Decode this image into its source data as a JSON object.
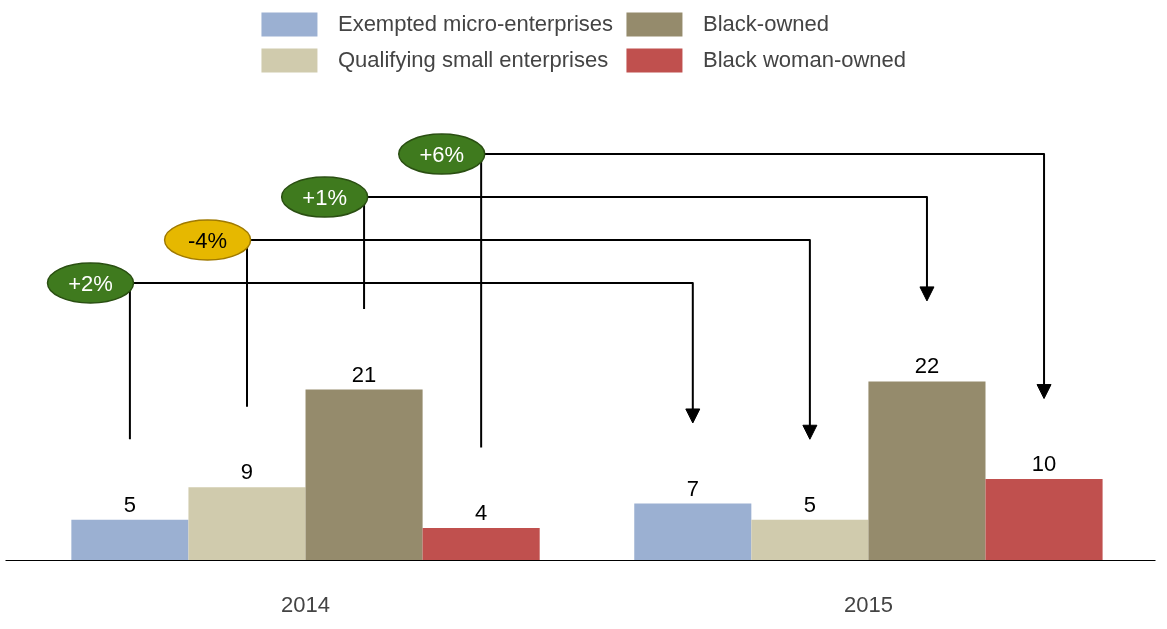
{
  "chart_data": {
    "type": "bar",
    "categories": [
      "2014",
      "2015"
    ],
    "series": [
      {
        "name": "Exempted micro-enterprises",
        "color": "#9bb0d2",
        "values": [
          5,
          7
        ]
      },
      {
        "name": "Qualifying small enterprises",
        "color": "#d0cbad",
        "values": [
          9,
          5
        ]
      },
      {
        "name": "Black-owned",
        "color": "#958b6c",
        "values": [
          21,
          22
        ]
      },
      {
        "name": "Black woman-owned",
        "color": "#c0504e",
        "values": [
          4,
          10
        ]
      }
    ],
    "data_labels": true,
    "legend": "top",
    "annotations": [
      "+2%",
      "-4%",
      "+1%",
      "+6%"
    ]
  }
}
